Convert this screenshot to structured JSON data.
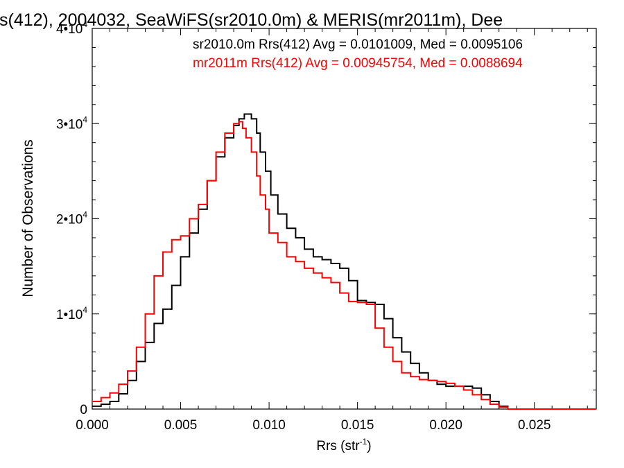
{
  "chart_data": {
    "type": "line",
    "title": "s(412), 2004032, SeaWiFS(sr2010.0m) & MERIS(mr2011m), Dee",
    "xlabel": "Rrs (str",
    "xlabel_sup": "-1",
    "xlabel_end": ")",
    "ylabel": "Number of Observations",
    "xlim": [
      0,
      0.0285
    ],
    "ylim": [
      0,
      40000
    ],
    "x_ticks": [
      {
        "value": 0.0,
        "label": "0.000"
      },
      {
        "value": 0.005,
        "label": "0.005"
      },
      {
        "value": 0.01,
        "label": "0.010"
      },
      {
        "value": 0.015,
        "label": "0.015"
      },
      {
        "value": 0.02,
        "label": "0.020"
      },
      {
        "value": 0.025,
        "label": "0.025"
      }
    ],
    "y_ticks": [
      {
        "value": 0,
        "mant": "0",
        "exp": ""
      },
      {
        "value": 10000,
        "mant": "1•10",
        "exp": "4"
      },
      {
        "value": 20000,
        "mant": "2•10",
        "exp": "4"
      },
      {
        "value": 30000,
        "mant": "3•10",
        "exp": "4"
      },
      {
        "value": 40000,
        "mant": "4•10",
        "exp": "4"
      }
    ],
    "legend": [
      {
        "text": "sr2010.0m Rrs(412) Avg = 0.0101009, Med = 0.0095106",
        "color": "#000000"
      },
      {
        "text": "mr2011m Rrs(412) Avg = 0.00945754, Med = 0.0088694",
        "color": "#ff0000"
      }
    ],
    "series": [
      {
        "color": "#000000",
        "x": [
          0.0,
          0.0005,
          0.001,
          0.0015,
          0.002,
          0.0025,
          0.003,
          0.0035,
          0.004,
          0.0045,
          0.005,
          0.0055,
          0.006,
          0.0065,
          0.007,
          0.0075,
          0.008,
          0.0083,
          0.0086,
          0.0088,
          0.009,
          0.0093,
          0.0095,
          0.0098,
          0.0101,
          0.0105,
          0.011,
          0.0115,
          0.012,
          0.0125,
          0.013,
          0.0135,
          0.014,
          0.0145,
          0.015,
          0.0155,
          0.016,
          0.0165,
          0.017,
          0.0175,
          0.018,
          0.0185,
          0.019,
          0.0195,
          0.02,
          0.0205,
          0.021,
          0.0215,
          0.022,
          0.0225,
          0.023,
          0.0235,
          0.024,
          0.0285
        ],
        "y": [
          300,
          500,
          800,
          1600,
          3000,
          5000,
          7000,
          9000,
          10500,
          13000,
          16000,
          18500,
          21000,
          24000,
          26500,
          28500,
          29800,
          30500,
          31000,
          31000,
          30500,
          29000,
          27000,
          25000,
          22500,
          20500,
          19000,
          18000,
          16800,
          16000,
          15700,
          15300,
          14800,
          13500,
          11400,
          11200,
          11000,
          9500,
          7500,
          6000,
          4800,
          3800,
          3000,
          2600,
          2400,
          2400,
          2400,
          2200,
          1500,
          800,
          300,
          0,
          0,
          0
        ]
      },
      {
        "color": "#ff0000",
        "x": [
          0.0,
          0.0005,
          0.001,
          0.0015,
          0.002,
          0.0025,
          0.003,
          0.0035,
          0.004,
          0.0045,
          0.005,
          0.0055,
          0.006,
          0.0065,
          0.007,
          0.0075,
          0.008,
          0.0083,
          0.0085,
          0.0087,
          0.009,
          0.0093,
          0.0095,
          0.0098,
          0.01,
          0.0105,
          0.011,
          0.0115,
          0.012,
          0.0125,
          0.013,
          0.0135,
          0.014,
          0.0145,
          0.015,
          0.0155,
          0.016,
          0.0165,
          0.017,
          0.0175,
          0.018,
          0.0185,
          0.019,
          0.0195,
          0.02,
          0.0205,
          0.021,
          0.0215,
          0.022,
          0.0225,
          0.023,
          0.0235,
          0.024,
          0.0285
        ],
        "y": [
          800,
          1200,
          1700,
          2600,
          4000,
          6500,
          10000,
          14000,
          16500,
          17800,
          18200,
          20000,
          21500,
          24000,
          27000,
          29000,
          30000,
          30200,
          29500,
          28500,
          27000,
          24500,
          22500,
          21000,
          18500,
          17500,
          16000,
          15500,
          14800,
          14300,
          13800,
          13300,
          12200,
          11300,
          11200,
          11000,
          8500,
          6500,
          5000,
          3800,
          3400,
          3100,
          3000,
          2900,
          2700,
          2400,
          2000,
          1500,
          1000,
          500,
          200,
          0,
          0,
          0
        ]
      }
    ]
  }
}
